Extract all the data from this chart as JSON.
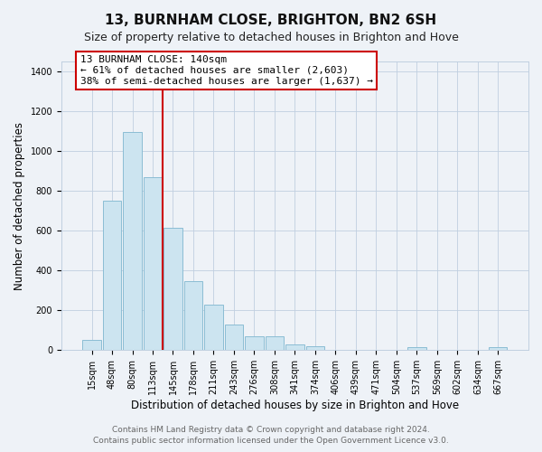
{
  "title": "13, BURNHAM CLOSE, BRIGHTON, BN2 6SH",
  "subtitle": "Size of property relative to detached houses in Brighton and Hove",
  "xlabel": "Distribution of detached houses by size in Brighton and Hove",
  "ylabel": "Number of detached properties",
  "bar_labels": [
    "15sqm",
    "48sqm",
    "80sqm",
    "113sqm",
    "145sqm",
    "178sqm",
    "211sqm",
    "243sqm",
    "276sqm",
    "308sqm",
    "341sqm",
    "374sqm",
    "406sqm",
    "439sqm",
    "471sqm",
    "504sqm",
    "537sqm",
    "569sqm",
    "602sqm",
    "634sqm",
    "667sqm"
  ],
  "bar_values": [
    52,
    750,
    1097,
    870,
    616,
    348,
    228,
    130,
    68,
    70,
    27,
    20,
    3,
    0,
    0,
    0,
    13,
    0,
    0,
    0,
    13
  ],
  "bar_color": "#cce4f0",
  "bar_edge_color": "#8bbdd4",
  "vline_x": 3.5,
  "vline_color": "#cc0000",
  "ylim": [
    0,
    1450
  ],
  "yticks": [
    0,
    200,
    400,
    600,
    800,
    1000,
    1200,
    1400
  ],
  "annotation_title": "13 BURNHAM CLOSE: 140sqm",
  "annotation_line1": "← 61% of detached houses are smaller (2,603)",
  "annotation_line2": "38% of semi-detached houses are larger (1,637) →",
  "annotation_box_color": "#ffffff",
  "annotation_box_edge_color": "#cc0000",
  "footer_line1": "Contains HM Land Registry data © Crown copyright and database right 2024.",
  "footer_line2": "Contains public sector information licensed under the Open Government Licence v3.0.",
  "background_color": "#eef2f7",
  "plot_background_color": "#eef2f7",
  "grid_color": "#c0cfe0",
  "title_fontsize": 11,
  "subtitle_fontsize": 9,
  "axis_label_fontsize": 8.5,
  "tick_fontsize": 7,
  "footer_fontsize": 6.5,
  "annotation_fontsize": 8
}
